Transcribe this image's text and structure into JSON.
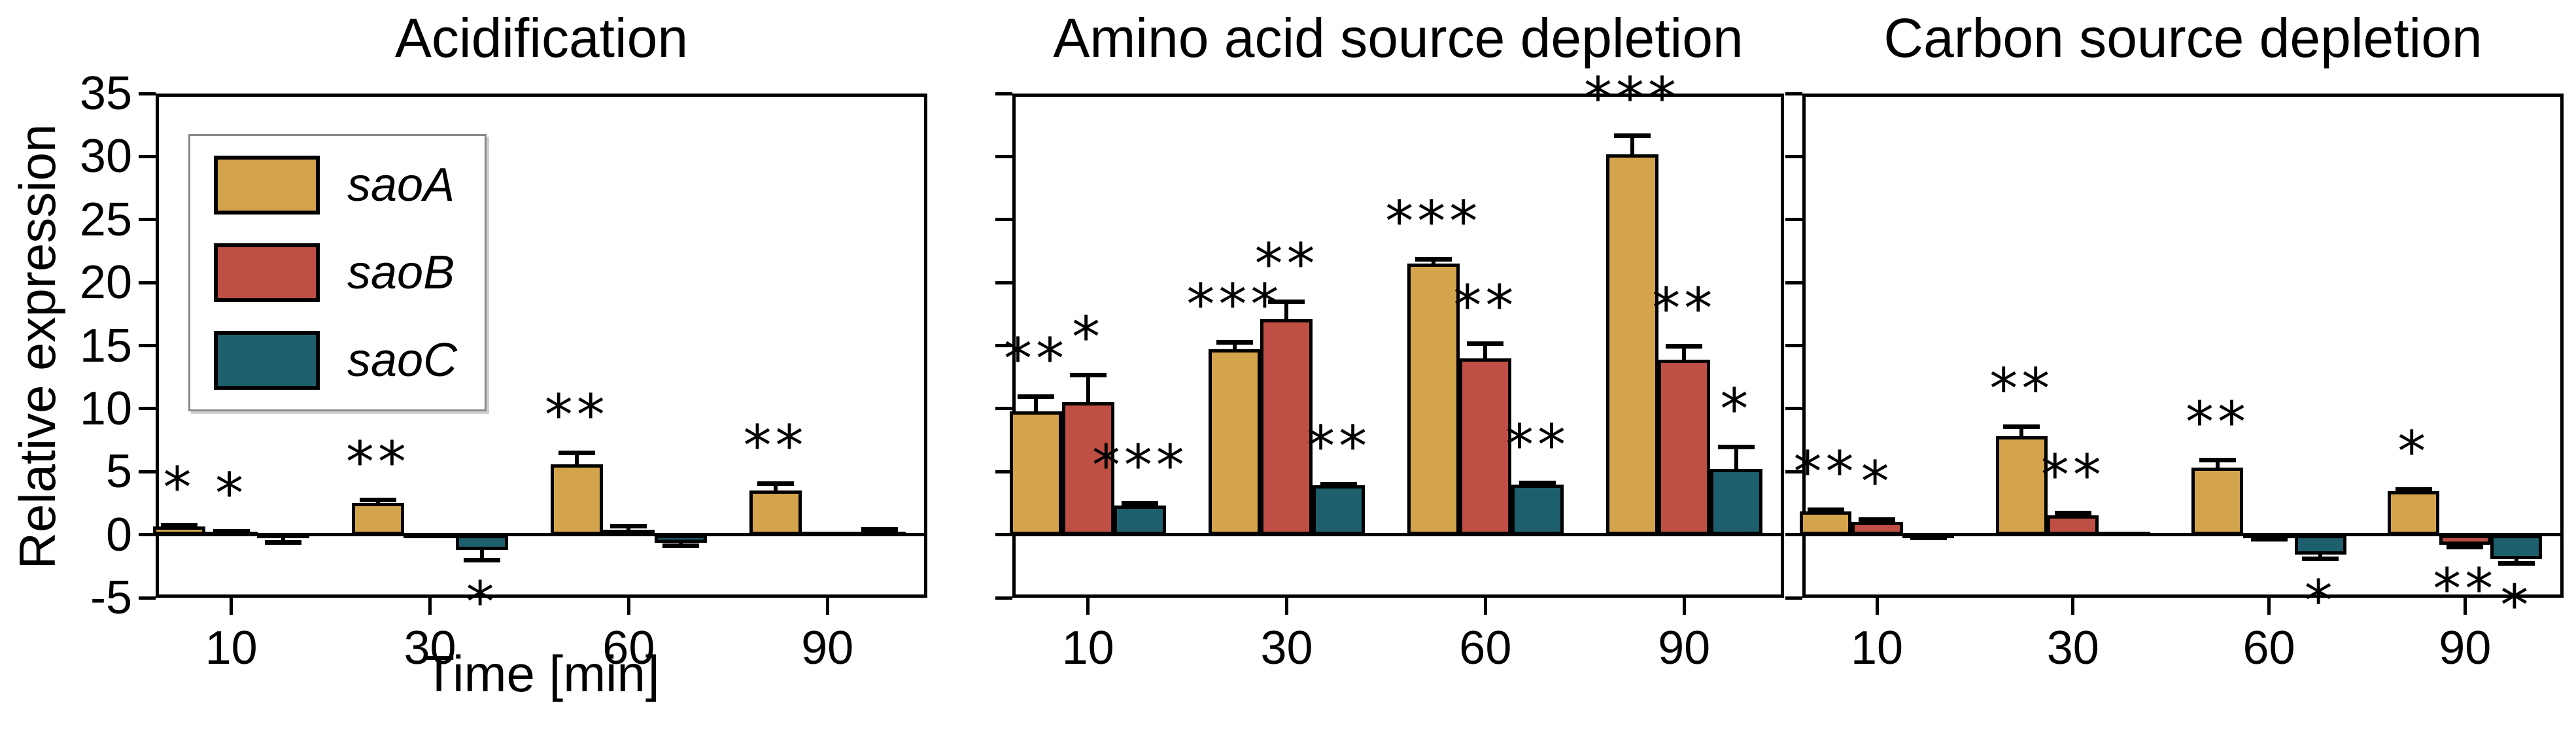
{
  "figure": {
    "ylabel": "Relative expression",
    "xlabel": "Time [min]",
    "legend": [
      {
        "label": "saoA",
        "color": "#D4A44C"
      },
      {
        "label": "saoB",
        "color": "#BF4F44"
      },
      {
        "label": "saoC",
        "color": "#1E5F6D"
      }
    ]
  },
  "chart_data": [
    {
      "type": "bar",
      "title": "Acidification",
      "categories": [
        "10",
        "30",
        "60",
        "90"
      ],
      "xlabel": "Time [min]",
      "ylabel": "Relative expression",
      "ylim": [
        -5,
        35
      ],
      "yticks": [
        35,
        30,
        25,
        20,
        15,
        10,
        5,
        0,
        -5
      ],
      "grid": false,
      "legend_position": "upper-left",
      "series": [
        {
          "name": "saoA",
          "color": "#D4A44C",
          "values": [
            0.65,
            2.5,
            5.6,
            3.5
          ],
          "errors": [
            0.12,
            0.3,
            0.9,
            0.6
          ],
          "sig": [
            "*",
            "**",
            "**",
            "**"
          ]
        },
        {
          "name": "saoB",
          "color": "#BF4F44",
          "values": [
            0.15,
            -0.2,
            0.4,
            0.08
          ],
          "errors": [
            0.12,
            0,
            0.3,
            0
          ],
          "sig": [
            "*",
            "",
            "",
            ""
          ]
        },
        {
          "name": "saoC",
          "color": "#1E5F6D",
          "values": [
            -0.3,
            -1.2,
            -0.65,
            0.15
          ],
          "errors": [
            0.3,
            0.8,
            0.2,
            0.3
          ],
          "sig": [
            "",
            "*",
            "",
            ""
          ]
        }
      ]
    },
    {
      "type": "bar",
      "title": "Amino acid source depletion",
      "categories": [
        "10",
        "30",
        "60",
        "90"
      ],
      "ylim": [
        -5,
        35
      ],
      "yticks": [
        35,
        30,
        25,
        20,
        15,
        10,
        5,
        0,
        -5
      ],
      "grid": false,
      "series": [
        {
          "name": "saoA",
          "color": "#D4A44C",
          "values": [
            9.8,
            14.7,
            21.5,
            30.2
          ],
          "errors": [
            1.2,
            0.6,
            0.4,
            1.5
          ],
          "sig": [
            "**",
            "***",
            "***",
            "***"
          ]
        },
        {
          "name": "saoB",
          "color": "#BF4F44",
          "values": [
            10.5,
            17.1,
            14.0,
            13.9
          ],
          "errors": [
            2.2,
            1.4,
            1.2,
            1.1
          ],
          "sig": [
            "*",
            "**",
            "**",
            "**"
          ]
        },
        {
          "name": "saoC",
          "color": "#1E5F6D",
          "values": [
            2.3,
            3.9,
            4.0,
            5.2
          ],
          "errors": [
            0.2,
            0.15,
            0.15,
            1.8
          ],
          "sig": [
            "***",
            "**",
            "**",
            "*"
          ]
        }
      ]
    },
    {
      "type": "bar",
      "title": "Carbon source depletion",
      "categories": [
        "10",
        "30",
        "60",
        "90"
      ],
      "ylim": [
        -5,
        35
      ],
      "yticks": [
        35,
        30,
        25,
        20,
        15,
        10,
        5,
        0,
        -5
      ],
      "grid": false,
      "series": [
        {
          "name": "saoA",
          "color": "#D4A44C",
          "values": [
            1.85,
            7.8,
            5.3,
            3.45
          ],
          "errors": [
            0.15,
            0.8,
            0.65,
            0.15
          ],
          "sig": [
            "**",
            "**",
            "**",
            "*"
          ]
        },
        {
          "name": "saoB",
          "color": "#BF4F44",
          "values": [
            1.0,
            1.55,
            -0.25,
            -0.8
          ],
          "errors": [
            0.2,
            0.2,
            0.1,
            0.15
          ],
          "sig": [
            "*",
            "**",
            "",
            "**"
          ]
        },
        {
          "name": "saoC",
          "color": "#1E5F6D",
          "values": [
            -0.15,
            0.1,
            -1.55,
            -1.95
          ],
          "errors": [
            0.1,
            0,
            0.35,
            0.3
          ],
          "sig": [
            "",
            "",
            "*",
            "*"
          ]
        }
      ]
    }
  ]
}
